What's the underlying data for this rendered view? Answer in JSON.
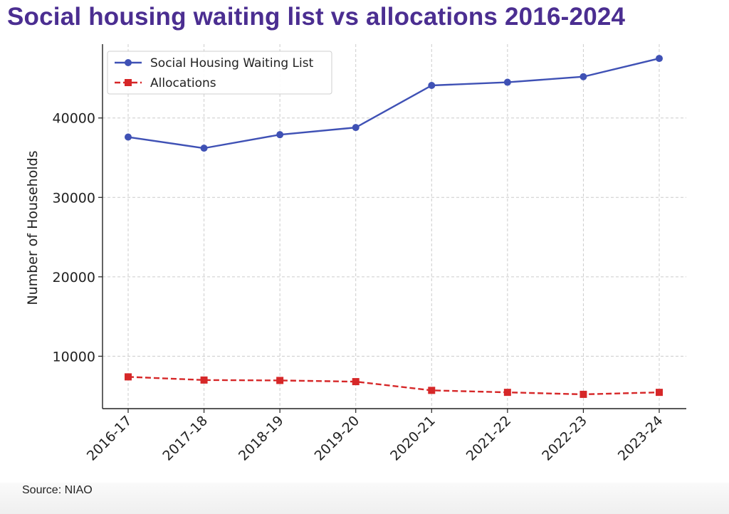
{
  "chart_data": {
    "type": "line",
    "title": "Social housing waiting list vs allocations 2016-2024",
    "xlabel": "",
    "ylabel": "Number of Households",
    "categories": [
      "2016-17",
      "2017-18",
      "2018-19",
      "2019-20",
      "2020-21",
      "2021-22",
      "2022-23",
      "2023-24"
    ],
    "yticks": [
      10000,
      20000,
      30000,
      40000
    ],
    "ylim": [
      3400,
      49300
    ],
    "grid": true,
    "legend_position": "top-left",
    "series": [
      {
        "name": "Social Housing Waiting List",
        "color": "#3f51b5",
        "line_style": "solid",
        "marker": "circle",
        "values": [
          37600,
          36200,
          37900,
          38800,
          44100,
          44500,
          45200,
          47500
        ]
      },
      {
        "name": "Allocations",
        "color": "#d62728",
        "line_style": "dashed",
        "marker": "square",
        "values": [
          7400,
          7000,
          6950,
          6800,
          5700,
          5450,
          5200,
          5450
        ]
      }
    ]
  },
  "source": "Source: NIAO"
}
